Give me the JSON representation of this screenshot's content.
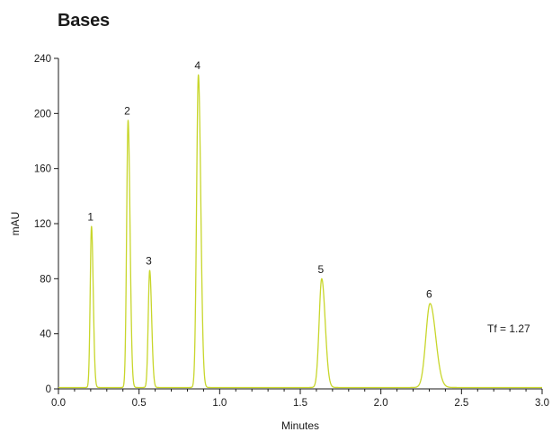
{
  "chart_data": {
    "type": "line",
    "title": "Bases",
    "xlabel": "Minutes",
    "ylabel": "mAU",
    "xlim": [
      0,
      3.0
    ],
    "ylim": [
      0,
      240
    ],
    "x_ticks": [
      "0.0",
      "0.5",
      "1.0",
      "1.5",
      "2.0",
      "2.5",
      "3.0"
    ],
    "y_ticks": [
      "0",
      "40",
      "80",
      "120",
      "160",
      "200",
      "240"
    ],
    "baseline": 1,
    "grid": false,
    "line_color": "#c8d62b",
    "peaks": [
      {
        "label": "1",
        "time": 0.205,
        "height": 117,
        "width": 0.008
      },
      {
        "label": "2",
        "time": 0.432,
        "height": 194,
        "width": 0.009
      },
      {
        "label": "3",
        "time": 0.566,
        "height": 85,
        "width": 0.009
      },
      {
        "label": "4",
        "time": 0.868,
        "height": 227,
        "width": 0.011
      },
      {
        "label": "5",
        "time": 1.633,
        "height": 79,
        "width": 0.016
      },
      {
        "label": "6",
        "time": 2.305,
        "height": 61,
        "width": 0.026
      }
    ],
    "annotations": [
      {
        "text": "Tf = 1.27",
        "x": 2.66,
        "y": 41
      }
    ]
  }
}
